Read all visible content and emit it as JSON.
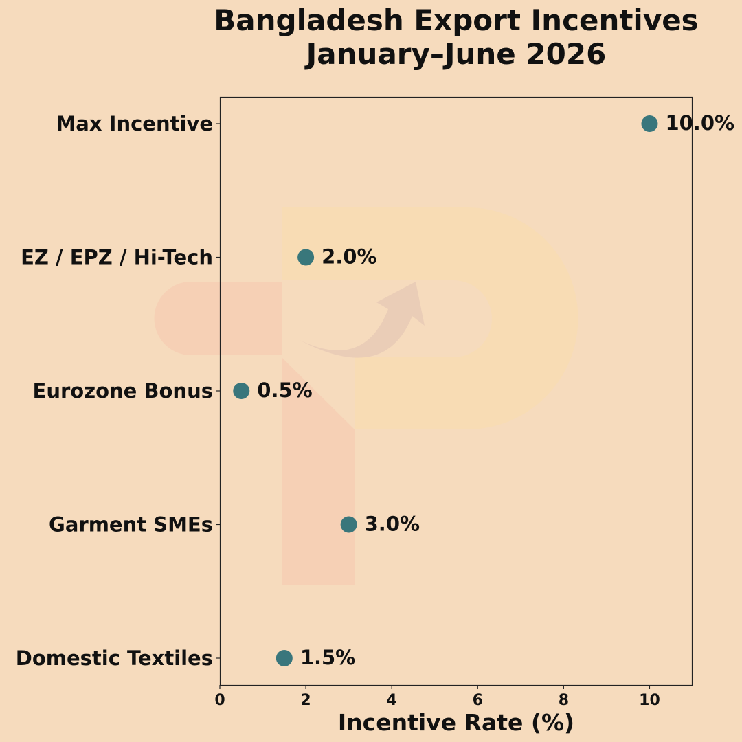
{
  "chart_data": {
    "type": "scatter",
    "title": [
      "Bangladesh Export Incentives",
      "January–June 2026"
    ],
    "xlabel": "Incentive Rate (%)",
    "ylabel": "",
    "xlim": [
      0,
      11
    ],
    "xticks": [
      0,
      2,
      4,
      6,
      8,
      10
    ],
    "xtick_labels": [
      "0",
      "2",
      "4",
      "6",
      "8",
      "10"
    ],
    "grid": false,
    "marker_color": "#2e7178",
    "categories": [
      "Max Incentive",
      "EZ / EPZ / Hi-Tech",
      "Eurozone Bonus",
      "Garment SMEs",
      "Domestic Textiles"
    ],
    "values": [
      10.0,
      2.0,
      0.5,
      3.0,
      1.5
    ],
    "data_labels": [
      "10.0%",
      "2.0%",
      "0.5%",
      "3.0%",
      "1.5%"
    ]
  },
  "colors": {
    "background": "#f6dbbd",
    "watermark_primary": "#f8dcb3",
    "watermark_secondary": "#f6cdb3"
  },
  "watermark_icon": "logo-watermark"
}
